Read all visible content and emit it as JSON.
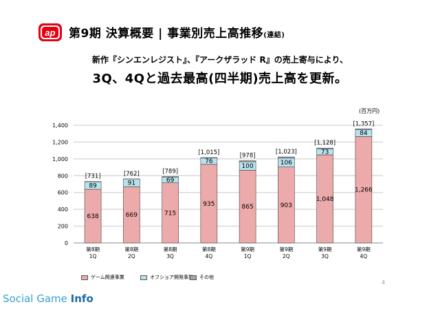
{
  "header": {
    "logo_text": "ap",
    "title": "第9期 決算概要 | 事業別売上高推移",
    "title_suffix": "(連結)",
    "subtitle_line1": "新作『シンエンレジスト』、『アークザラッド R』の売上寄与により、",
    "subtitle_line2": "3Q、4Qと過去最高(四半期)売上高を更新。"
  },
  "chart_data": {
    "type": "bar",
    "stacked": true,
    "unit_label": "(百万円)",
    "categories": [
      [
        "第8期",
        "1Q"
      ],
      [
        "第8期",
        "2Q"
      ],
      [
        "第8期",
        "3Q"
      ],
      [
        "第8期",
        "4Q"
      ],
      [
        "第9期",
        "1Q"
      ],
      [
        "第9期",
        "2Q"
      ],
      [
        "第9期",
        "3Q"
      ],
      [
        "第9期",
        "4Q"
      ]
    ],
    "series": [
      {
        "name": "ゲーム関連事業",
        "color": "#ecaaaa",
        "values": [
          638,
          669,
          715,
          935,
          865,
          903,
          1048,
          1266
        ],
        "labels": [
          "638",
          "669",
          "715",
          "935",
          "865",
          "903",
          "1,048",
          "1,266"
        ]
      },
      {
        "name": "オフショア開発事業",
        "color": "#b8e2ef",
        "values": [
          89,
          91,
          69,
          76,
          100,
          106,
          73,
          84
        ],
        "labels": [
          "89",
          "91",
          "69",
          "76",
          "100",
          "106",
          "73",
          "84"
        ]
      },
      {
        "name": "その他",
        "color": "#a6a6a6",
        "values": [
          4,
          2,
          5,
          4,
          13,
          14,
          7,
          7
        ],
        "labels": []
      }
    ],
    "totals": [
      "[731]",
      "[762]",
      "[789]",
      "[1,015]",
      "[978]",
      "[1,023]",
      "[1,128]",
      "[1,357]"
    ],
    "y_ticks": [
      "0",
      "200",
      "400",
      "600",
      "800",
      "1,000",
      "1,200",
      "1,400"
    ],
    "ylim": [
      0,
      1400
    ],
    "grid": true,
    "legend_position": "bottom"
  },
  "footer": {
    "page_number": "4",
    "watermark_part1": "Social Game ",
    "watermark_part2": "Info"
  }
}
